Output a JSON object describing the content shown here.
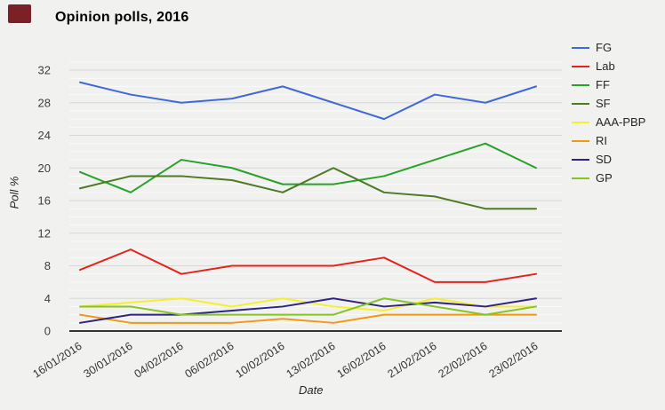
{
  "page": {
    "background": "#f1f1f0",
    "corner_marker_color": "#7a2026"
  },
  "chart_data": {
    "type": "line",
    "title": "Opinion polls, 2016",
    "xlabel": "Date",
    "ylabel": "Poll %",
    "categories": [
      "16/01/2016",
      "30/01/2016",
      "04/02/2016",
      "06/02/2016",
      "10/02/2016",
      "13/02/2016",
      "16/02/2016",
      "21/02/2016",
      "22/02/2016",
      "23/02/2016"
    ],
    "series": [
      {
        "name": "FG",
        "color": "#4169d6",
        "values": [
          30.5,
          29,
          28,
          28.5,
          30,
          28,
          26,
          29,
          28,
          30
        ]
      },
      {
        "name": "Lab",
        "color": "#e5231b",
        "values": [
          7.5,
          10,
          7,
          8,
          8,
          8,
          9,
          6,
          6,
          7
        ]
      },
      {
        "name": "FF",
        "color": "#28a228",
        "values": [
          19.5,
          17,
          21,
          20,
          18,
          18,
          19,
          21,
          23,
          20
        ]
      },
      {
        "name": "SF",
        "color": "#4c7a26",
        "values": [
          17.5,
          19,
          19,
          18.5,
          17,
          20,
          17,
          16.5,
          15,
          15
        ]
      },
      {
        "name": "AAA-PBP",
        "color": "#f6ef2d",
        "values": [
          3,
          3.5,
          4,
          3,
          4,
          3,
          2.5,
          4,
          3,
          3
        ]
      },
      {
        "name": "RI",
        "color": "#f09a12",
        "values": [
          2,
          1,
          1,
          1,
          1.5,
          1,
          2,
          2,
          2,
          2
        ]
      },
      {
        "name": "SD",
        "color": "#2d2483",
        "values": [
          1,
          2,
          2,
          2.5,
          3,
          4,
          3,
          3.5,
          3,
          4
        ]
      },
      {
        "name": "GP",
        "color": "#85c425",
        "values": [
          3,
          3,
          2,
          2,
          2,
          2,
          4,
          3,
          2,
          3
        ]
      }
    ],
    "ylim": [
      0,
      33
    ],
    "yticks": [
      0,
      4,
      8,
      12,
      16,
      20,
      24,
      28,
      32
    ],
    "grid": "horizontal; minor every 1 unit, major every 4 units",
    "legend_position": "right",
    "x_tick_rotation_deg": -33,
    "axis_color": "#1a1a1a",
    "gridline_minor_color": "#fafaf9",
    "gridline_major_color": "#d7d7d6"
  }
}
